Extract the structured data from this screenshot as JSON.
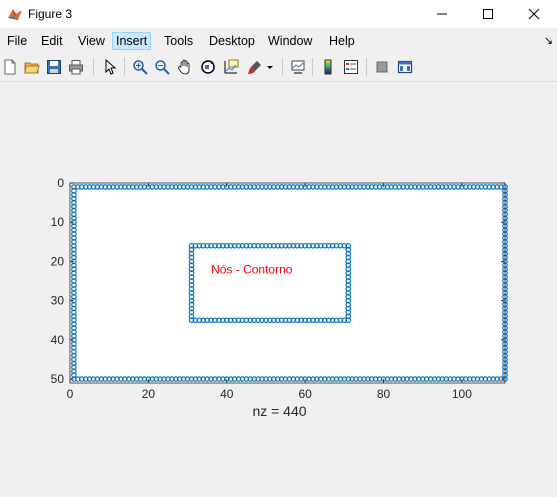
{
  "window": {
    "title": "Figure 3"
  },
  "menu": {
    "items": [
      "File",
      "Edit",
      "View",
      "Insert",
      "Tools",
      "Desktop",
      "Window",
      "Help"
    ]
  },
  "toolbar": {
    "icons": [
      "new-file-icon",
      "open-folder-icon",
      "save-icon",
      "print-icon",
      "select-arrow-icon",
      "zoom-in-icon",
      "zoom-out-icon",
      "pan-hand-icon",
      "rotate-3d-icon",
      "data-cursor-icon",
      "brush-icon",
      "link-plot-icon",
      "colorbar-icon",
      "legend-icon",
      "hide-plot-tools-icon",
      "show-plot-tools-icon"
    ]
  },
  "colors": {
    "marker": "#0072bd",
    "annotation": "#ff0000",
    "axis": "#262626"
  },
  "chart_data": {
    "type": "scatter",
    "title": "",
    "xlabel": "nz = 440",
    "ylabel": "",
    "xlim": [
      0,
      111
    ],
    "ylim": [
      0,
      51
    ],
    "y_reversed": true,
    "xticks": [
      0,
      20,
      40,
      60,
      80,
      100
    ],
    "yticks": [
      0,
      10,
      20,
      30,
      40,
      50
    ],
    "grid": false,
    "annotation": {
      "text": "Nós - Contorno",
      "x": 36,
      "y": 22
    },
    "series": [
      {
        "shape": "outer-rectangle",
        "x_range": [
          1,
          111
        ],
        "y_range": [
          1,
          50
        ]
      },
      {
        "shape": "inner-rectangle",
        "x_range": [
          31,
          71
        ],
        "y_range": [
          16,
          35
        ]
      }
    ]
  }
}
